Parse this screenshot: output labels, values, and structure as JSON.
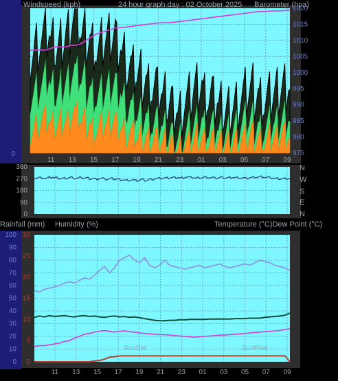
{
  "header": {
    "left_label": "Windspeed (kph)",
    "center_label": "24 hour graph day : 02 October 2025",
    "right_label": "Barometer (hpa)"
  },
  "middle": {
    "direction_labels": [
      "N",
      "W",
      "S",
      "E",
      "N"
    ]
  },
  "lower_header": {
    "left_label1": "Rainfall (mm)",
    "left_label2": "Humidity (%)",
    "right_label": "Temperature (°C)Dew Point (°C)"
  },
  "annotations": {
    "sunset": "SunSet",
    "sunrise": "SunRise"
  },
  "colors": {
    "plot_bg": "#7ff7ff",
    "frame_bg": "#2e2e2e",
    "left_bar": "#1d1d76",
    "gust": "#000000",
    "wind_avg": "#3fe07a",
    "wind_low": "#ff8a1e",
    "barometer": "#d63cd6",
    "direction": "#1f4f7a",
    "humidity": "#8f8fe8",
    "temperature": "#0f4f3a",
    "dewpoint": "#d63cd6",
    "rain": "#c0392b"
  },
  "chart_data": [
    {
      "type": "line",
      "name": "wind-barometer",
      "x_tick_labels": [
        "11",
        "13",
        "15",
        "17",
        "19",
        "21",
        "23",
        "01",
        "03",
        "05",
        "07",
        "09"
      ],
      "left_axis": {
        "ticks": [
          "0",
          "",
          "",
          "",
          "",
          "",
          "",
          "",
          "",
          "",
          "",
          "",
          "",
          ""
        ]
      },
      "right_axis": {
        "ylim": [
          975,
          1020
        ],
        "ticks": [
          "975",
          "980",
          "985",
          "990",
          "995",
          "1000",
          "1005",
          "1010",
          "1015",
          "1020"
        ]
      },
      "series": [
        {
          "role": "gust",
          "values": [
            22,
            24,
            25,
            26,
            24,
            23,
            25,
            27,
            30,
            28,
            26,
            25,
            24,
            22,
            24,
            25,
            26,
            24,
            22,
            19,
            18,
            17,
            16,
            15,
            14,
            13,
            12,
            11,
            10,
            9,
            11,
            12,
            14,
            15,
            13,
            12,
            11,
            10,
            9,
            10,
            11,
            12,
            13,
            14,
            13,
            12,
            11,
            12,
            13,
            14,
            15,
            14
          ]
        },
        {
          "role": "wind_avg",
          "values": [
            13,
            14,
            15,
            16,
            14,
            13,
            15,
            16,
            18,
            17,
            16,
            14,
            13,
            12,
            13,
            14,
            15,
            14,
            12,
            10,
            9,
            8,
            8,
            7,
            6,
            6,
            5,
            4,
            3,
            3,
            4,
            5,
            6,
            7,
            6,
            5,
            5,
            4,
            4,
            5,
            6,
            6,
            7,
            7,
            6,
            5,
            5,
            6,
            6,
            7,
            8,
            7
          ]
        },
        {
          "role": "wind_low",
          "values": [
            5,
            6,
            7,
            7,
            6,
            6,
            7,
            7,
            9,
            8,
            7,
            6,
            5,
            5,
            6,
            6,
            7,
            6,
            5,
            4,
            4,
            3,
            3,
            3,
            3,
            2,
            2,
            2,
            1,
            1,
            2,
            2,
            3,
            3,
            3,
            2,
            2,
            2,
            2,
            2,
            3,
            3,
            3,
            4,
            3,
            3,
            2,
            3,
            3,
            4,
            4,
            3
          ]
        },
        {
          "role": "barometer",
          "values": [
            1007,
            1007,
            1007,
            1007,
            1007.5,
            1008,
            1008,
            1008,
            1008.5,
            1008.5,
            1009,
            1010,
            1011,
            1012,
            1012.5,
            1013,
            1013.5,
            1014,
            1014,
            1014.2,
            1014.4,
            1014.6,
            1014.8,
            1015,
            1015.2,
            1015.4,
            1015.5,
            1015.5,
            1015.6,
            1015.8,
            1016,
            1016.2,
            1016.4,
            1016.6,
            1016.8,
            1017,
            1017.2,
            1017.4,
            1017.6,
            1017.8,
            1018,
            1018.2,
            1018.4,
            1018.6,
            1018.8,
            1019,
            1019,
            1019.1,
            1019.2,
            1019.2,
            1019.3,
            1019.4
          ]
        }
      ]
    },
    {
      "type": "line",
      "name": "wind-direction",
      "left_axis": {
        "ylim": [
          0,
          360
        ],
        "ticks": [
          "0",
          "90",
          "180",
          "270",
          "360"
        ]
      },
      "series": [
        {
          "role": "direction",
          "values": [
            275,
            278,
            272,
            280,
            276,
            270,
            274,
            279,
            273,
            277,
            275,
            270,
            268,
            272,
            265,
            270,
            266,
            262,
            258,
            260,
            255,
            262,
            258,
            266,
            270,
            272,
            275,
            278,
            280,
            276,
            282,
            279,
            275,
            278,
            281,
            277,
            274,
            279,
            276,
            280,
            278,
            275,
            272,
            278,
            282,
            285,
            279,
            275,
            270,
            268,
            272,
            266
          ]
        }
      ]
    },
    {
      "type": "line",
      "name": "temp-humidity-rain",
      "x_tick_labels": [
        "11",
        "13",
        "15",
        "17",
        "19",
        "21",
        "23",
        "01",
        "03",
        "05",
        "07",
        "09"
      ],
      "left_axis": {
        "ylim": [
          0,
          100
        ],
        "ticks": [
          "0",
          "10",
          "20",
          "30",
          "40",
          "50",
          "60",
          "70",
          "80",
          "90",
          "100"
        ]
      },
      "inner_axis": {
        "ylim": [
          0,
          30
        ],
        "ticks": [
          "0",
          "5",
          "10",
          "15",
          "20",
          "25",
          "30"
        ]
      },
      "series": [
        {
          "role": "humidity",
          "values": [
            56,
            55,
            57,
            58,
            59,
            60,
            62,
            63,
            62,
            64,
            66,
            65,
            68,
            72,
            75,
            70,
            74,
            80,
            82,
            84,
            80,
            78,
            82,
            76,
            74,
            76,
            80,
            76,
            75,
            74,
            73,
            74,
            75,
            76,
            74,
            75,
            76,
            77,
            75,
            74,
            75,
            76,
            77,
            76,
            78,
            80,
            79,
            78,
            76,
            75,
            74,
            72
          ]
        },
        {
          "role": "temperature",
          "values": [
            10.5,
            10.8,
            10.6,
            10.9,
            10.7,
            10.8,
            10.9,
            10.7,
            10.6,
            10.8,
            10.9,
            10.7,
            10.8,
            10.6,
            10.5,
            10.7,
            10.8,
            10.6,
            10.7,
            10.5,
            10.6,
            10.4,
            10.2,
            10.0,
            9.8,
            9.7,
            9.7,
            9.8,
            9.8,
            9.9,
            9.9,
            10.0,
            10.0,
            10.0,
            10.0,
            10.1,
            10.1,
            10.1,
            10.1,
            10.1,
            10.2,
            10.2,
            10.2,
            10.3,
            10.3,
            10.3,
            10.5,
            10.6,
            10.7,
            10.8,
            11.0,
            11.5
          ]
        },
        {
          "role": "dewpoint",
          "values": [
            3.6,
            3.8,
            3.8,
            4.0,
            4.2,
            4.4,
            4.8,
            5.0,
            5.6,
            6.0,
            6.5,
            6.7,
            7.0,
            7.2,
            7.4,
            7.2,
            7.0,
            7.2,
            7.3,
            7.1,
            7.0,
            6.8,
            6.7,
            6.6,
            6.5,
            6.4,
            6.4,
            6.3,
            6.2,
            6.1,
            6.0,
            5.9,
            5.8,
            5.9,
            6.0,
            6.1,
            6.2,
            6.3,
            6.3,
            6.4,
            6.5,
            6.6,
            6.7,
            6.8,
            6.9,
            7.0,
            7.1,
            7.2,
            7.3,
            7.4,
            7.6,
            7.8
          ]
        },
        {
          "role": "rain",
          "values": [
            0,
            0,
            0,
            0,
            0,
            0,
            0,
            0,
            0,
            0,
            0,
            0,
            0.2,
            0.3,
            0.6,
            1.1,
            1.2,
            1.4,
            1.4,
            1.4,
            1.4,
            1.4,
            1.4,
            1.4,
            1.4,
            1.4,
            1.4,
            1.4,
            1.4,
            1.4,
            1.4,
            1.4,
            1.4,
            1.4,
            1.4,
            1.4,
            1.4,
            1.4,
            1.4,
            1.4,
            1.4,
            1.4,
            1.4,
            1.4,
            1.4,
            1.4,
            1.4,
            1.4,
            1.4,
            1.4,
            1.4,
            0
          ]
        }
      ]
    }
  ]
}
